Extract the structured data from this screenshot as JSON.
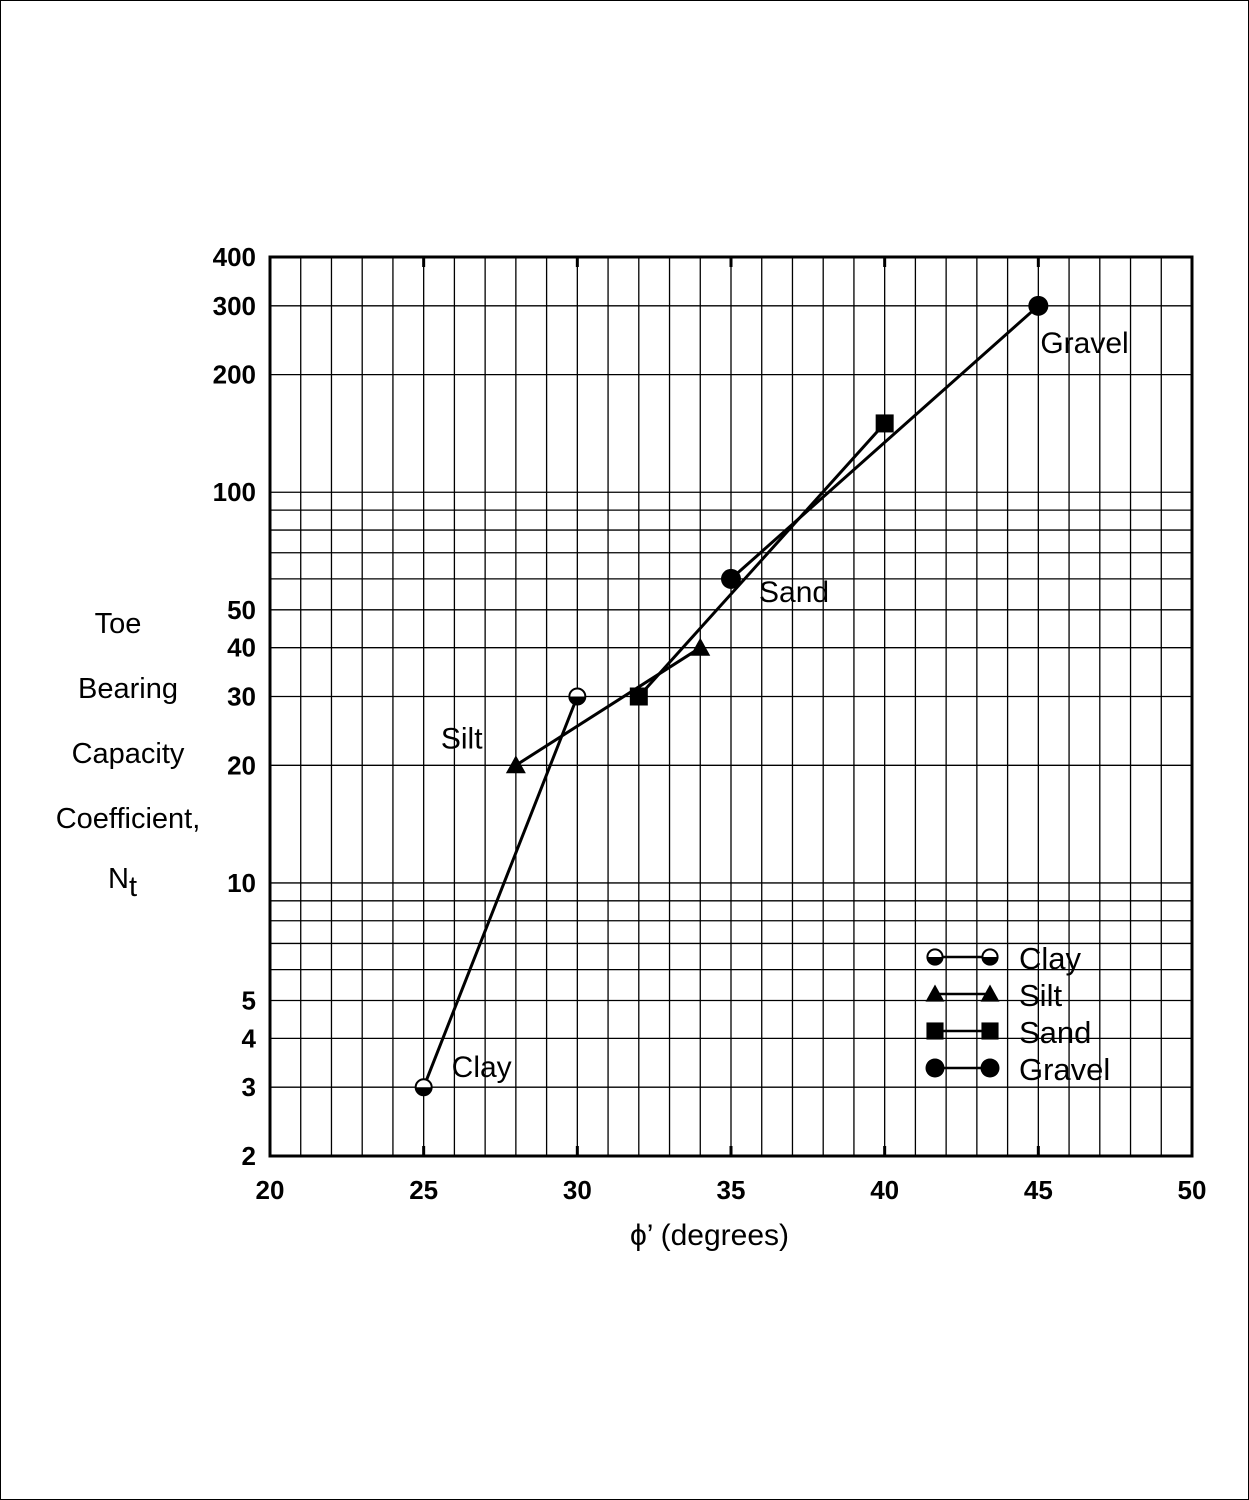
{
  "chart_data": {
    "type": "line",
    "title": "",
    "xlabel": "ϕ’ (degrees)",
    "ylabel": {
      "lines": [
        "Toe",
        "Bearing",
        "Capacity",
        "Coefficient,"
      ],
      "symbol": "N",
      "subscript": "t"
    },
    "xlim": [
      20,
      50
    ],
    "ylim": [
      2,
      400
    ],
    "yscale": "log",
    "grid": true,
    "legend_position": "bottom-right",
    "x_ticks": [
      "20",
      "25",
      "30",
      "35",
      "40",
      "45",
      "50"
    ],
    "y_ticks": [
      "2",
      "3",
      "4",
      "5",
      "10",
      "20",
      "30",
      "40",
      "50",
      "100",
      "200",
      "300",
      "400"
    ],
    "series": [
      {
        "name": "Clay",
        "marker": "half-circle",
        "x": [
          25,
          30
        ],
        "y": [
          3,
          30
        ]
      },
      {
        "name": "Silt",
        "marker": "triangle",
        "x": [
          28,
          34
        ],
        "y": [
          20,
          40
        ]
      },
      {
        "name": "Sand",
        "marker": "square",
        "x": [
          32,
          40
        ],
        "y": [
          30,
          150
        ]
      },
      {
        "name": "Gravel",
        "marker": "circle",
        "x": [
          35,
          45
        ],
        "y": [
          60,
          300
        ]
      }
    ],
    "annotations": [
      {
        "text": "Gravel",
        "x": 45,
        "y": 300
      },
      {
        "text": "Sand",
        "x": 35,
        "y": 60
      },
      {
        "text": "Silt",
        "x": 28,
        "y": 20
      },
      {
        "text": "Clay",
        "x": 25,
        "y": 3
      }
    ]
  }
}
